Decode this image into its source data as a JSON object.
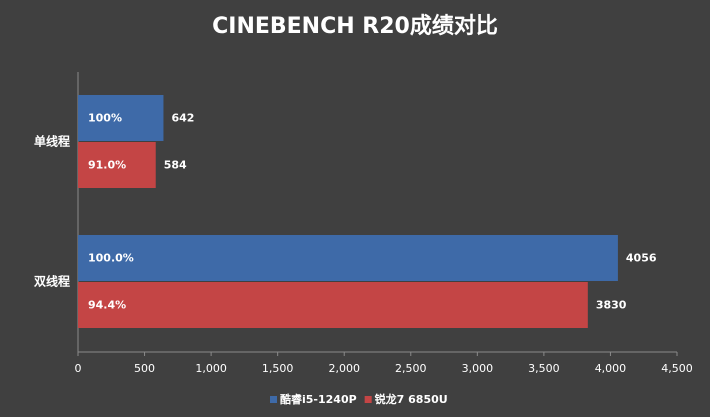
{
  "chart_data": {
    "type": "hbar",
    "title": "CINEBENCH R20成绩对比",
    "categories": [
      "单线程",
      "双线程"
    ],
    "series": [
      {
        "name": "酷睿i5-1240P",
        "color": "#3e6aa8",
        "values": [
          642,
          4056
        ],
        "inner_labels": [
          "100%",
          "100.0%"
        ]
      },
      {
        "name": "锐龙7 6850U",
        "color": "#c44545",
        "values": [
          584,
          3830
        ],
        "inner_labels": [
          "91.0%",
          "94.4%"
        ]
      }
    ],
    "xlim": [
      0,
      4500
    ],
    "xticks": [
      0,
      500,
      {
        "value": 1000,
        "label": "1,000"
      },
      {
        "value": 1500,
        "label": "1,500"
      },
      {
        "value": 2000,
        "label": "2,000"
      },
      {
        "value": 2500,
        "label": "2,500"
      },
      {
        "value": 3000,
        "label": "3,000"
      },
      {
        "value": 3500,
        "label": "3,500"
      },
      {
        "value": 4000,
        "label": "4,000"
      },
      {
        "value": 4500,
        "label": "4,500"
      }
    ],
    "grid": false,
    "legend": "bottom"
  }
}
